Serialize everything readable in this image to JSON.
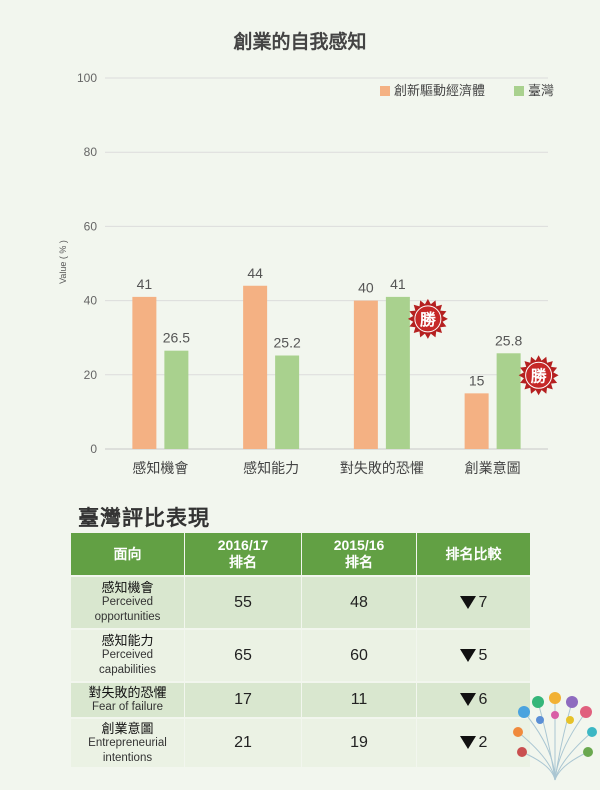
{
  "chart_data": {
    "type": "bar",
    "title": "創業的自我感知",
    "ylabel": "Value ( % )",
    "ylim": [
      0,
      100
    ],
    "yticks": [
      0,
      20,
      40,
      60,
      80,
      100
    ],
    "grid": true,
    "legend_position": "top-right",
    "categories": [
      "感知機會",
      "感知能力",
      "對失敗的恐懼",
      "創業意圖"
    ],
    "series": [
      {
        "name": "創新驅動經濟體",
        "color": "#f4b183",
        "values": [
          41,
          44,
          40,
          15
        ],
        "labels": [
          "41",
          "44",
          "40",
          "15"
        ]
      },
      {
        "name": "臺灣",
        "color": "#a9d18e",
        "values": [
          26.5,
          25.2,
          41,
          25.8
        ],
        "labels": [
          "26.5",
          "25.2",
          "41",
          "25.8"
        ]
      }
    ],
    "badges": [
      {
        "category_index": 2,
        "text": "勝"
      },
      {
        "category_index": 3,
        "text": "勝"
      }
    ]
  },
  "table": {
    "title": "臺灣評比表現",
    "headers": [
      {
        "line1": "面向",
        "line2": ""
      },
      {
        "line1": "2016/17",
        "line2": "排名"
      },
      {
        "line1": "2015/16",
        "line2": "排名"
      },
      {
        "line1": "排名比較",
        "line2": ""
      }
    ],
    "rows": [
      {
        "zh": "感知機會",
        "en1": "Perceived",
        "en2": "opportunities",
        "rank2016": "55",
        "rank2015": "48",
        "change": "7"
      },
      {
        "zh": "感知能力",
        "en1": "Perceived",
        "en2": "capabilities",
        "rank2016": "65",
        "rank2015": "60",
        "change": "5"
      },
      {
        "zh": "對失敗的恐懼",
        "en1": "Fear of failure",
        "en2": "",
        "rank2016": "17",
        "rank2015": "11",
        "change": "6"
      },
      {
        "zh": "創業意圖",
        "en1": "Entrepreneurial",
        "en2": "intentions",
        "rank2016": "21",
        "rank2015": "19",
        "change": "2"
      }
    ]
  },
  "colors": {
    "header_green": "#62a044",
    "badge_red": "#b52020",
    "grid": "#dcdcdc"
  }
}
